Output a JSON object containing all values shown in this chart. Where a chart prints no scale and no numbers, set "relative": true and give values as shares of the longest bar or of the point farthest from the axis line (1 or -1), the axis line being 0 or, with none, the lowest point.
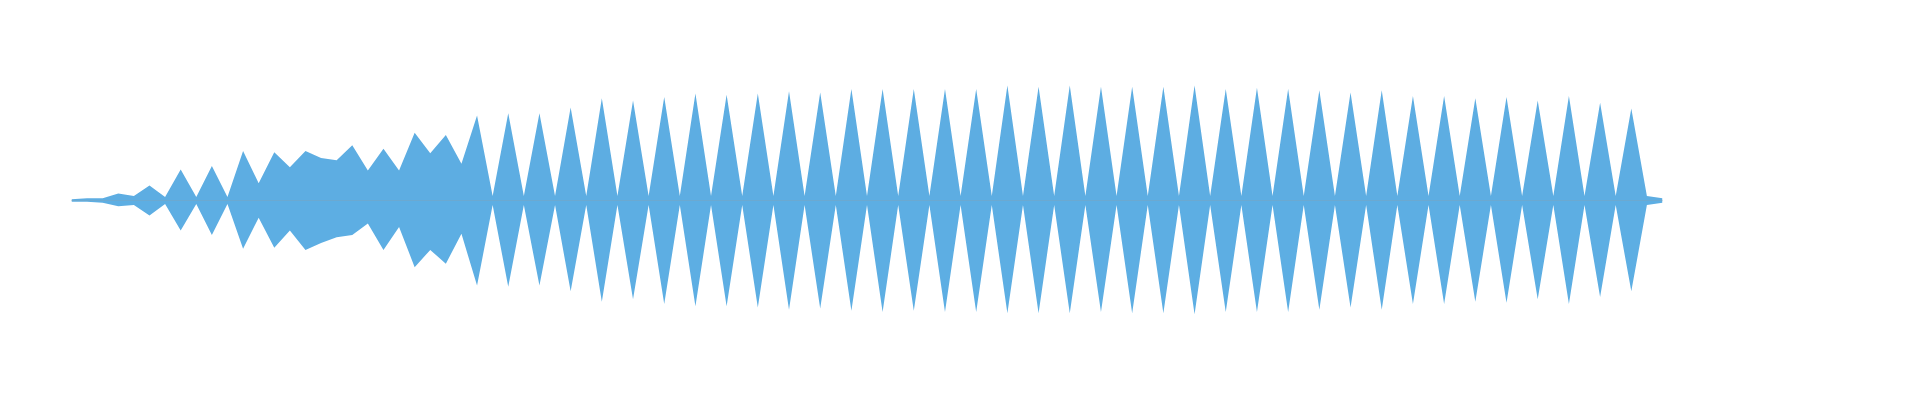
{
  "chart_data": {
    "type": "area",
    "relative": true,
    "categories": [
      null,
      null,
      null,
      null,
      null,
      null,
      null,
      null,
      null,
      null,
      null,
      null,
      null,
      null,
      null,
      null,
      null,
      null,
      null,
      null,
      null,
      null,
      null,
      null,
      null,
      null,
      null,
      null,
      null,
      null,
      null,
      null,
      null,
      null,
      null,
      null,
      null,
      null,
      null,
      null,
      null,
      null,
      null,
      null,
      null,
      null,
      null,
      null,
      null,
      null,
      null,
      null,
      null,
      null,
      null,
      null,
      null,
      null,
      null,
      null,
      null,
      null,
      null,
      null,
      null,
      null,
      null,
      null,
      null,
      null,
      null,
      null,
      null,
      null,
      null,
      null,
      null,
      null,
      null,
      null,
      null,
      null,
      null,
      null,
      null,
      null,
      null,
      null,
      null,
      null,
      null,
      null,
      null,
      null,
      null,
      null,
      null,
      null,
      null,
      null,
      null,
      null,
      null
    ],
    "series": [
      {
        "color": "#5dade2",
        "values": [
          0.01,
          0.02,
          0.02,
          0.06,
          0.04,
          0.13,
          0.03,
          0.27,
          0.03,
          0.3,
          0.03,
          0.43,
          0.15,
          0.42,
          0.29,
          0.43,
          0.37,
          0.35,
          0.48,
          0.26,
          0.45,
          0.26,
          0.59,
          0.41,
          0.57,
          0.32,
          0.74,
          0.04,
          0.76,
          0.04,
          0.76,
          0.04,
          0.81,
          0.04,
          0.89,
          0.04,
          0.87,
          0.04,
          0.9,
          0.04,
          0.93,
          0.04,
          0.92,
          0.04,
          0.93,
          0.04,
          0.95,
          0.04,
          0.94,
          0.04,
          0.97,
          0.04,
          0.97,
          0.04,
          0.97,
          0.04,
          0.97,
          0.04,
          0.97,
          0.04,
          1,
          0.04,
          0.99,
          0.04,
          1,
          0.04,
          0.99,
          0.04,
          0.99,
          0.04,
          0.99,
          0.04,
          1,
          0.04,
          0.97,
          0.04,
          0.98,
          0.04,
          0.97,
          0.04,
          0.96,
          0.04,
          0.94,
          0.04,
          0.96,
          0.04,
          0.91,
          0.04,
          0.91,
          0.04,
          0.89,
          0.04,
          0.9,
          0.04,
          0.87,
          0.04,
          0.91,
          0.04,
          0.85,
          0.04,
          0.8,
          0.04,
          0.02
        ]
      },
      {
        "color": "#5daee3",
        "values": [
          -0.01,
          -0.01,
          -0.02,
          -0.05,
          -0.04,
          -0.13,
          -0.03,
          -0.26,
          -0.03,
          -0.3,
          -0.03,
          -0.42,
          -0.15,
          -0.41,
          -0.26,
          -0.43,
          -0.37,
          -0.32,
          -0.3,
          -0.2,
          -0.43,
          -0.23,
          -0.58,
          -0.43,
          -0.55,
          -0.29,
          -0.74,
          -0.04,
          -0.75,
          -0.04,
          -0.74,
          -0.04,
          -0.79,
          -0.04,
          -0.88,
          -0.04,
          -0.86,
          -0.04,
          -0.9,
          -0.04,
          -0.92,
          -0.04,
          -0.92,
          -0.04,
          -0.93,
          -0.04,
          -0.95,
          -0.04,
          -0.94,
          -0.04,
          -0.96,
          -0.04,
          -0.97,
          -0.04,
          -0.96,
          -0.04,
          -0.97,
          -0.04,
          -0.97,
          -0.04,
          -0.98,
          -0.04,
          -0.98,
          -0.04,
          -0.98,
          -0.04,
          -0.97,
          -0.04,
          -0.98,
          -0.04,
          -0.98,
          -0.04,
          -0.99,
          -0.04,
          -0.97,
          -0.04,
          -0.97,
          -0.04,
          -0.97,
          -0.04,
          -0.95,
          -0.04,
          -0.93,
          -0.04,
          -0.95,
          -0.04,
          -0.9,
          -0.04,
          -0.9,
          -0.04,
          -0.88,
          -0.04,
          -0.89,
          -0.04,
          -0.86,
          -0.04,
          -0.9,
          -0.04,
          -0.84,
          -0.04,
          -0.79,
          -0.04,
          -0.02
        ]
      }
    ]
  }
}
